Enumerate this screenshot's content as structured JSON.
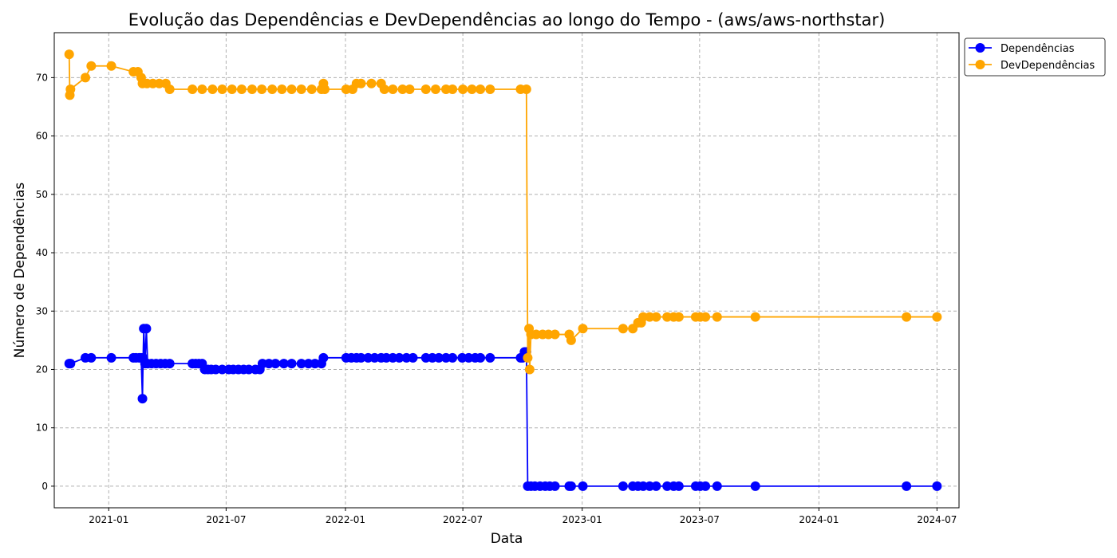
{
  "chart_data": {
    "type": "line",
    "title": "Evolução das Dependências e DevDependências ao longo do Tempo - (aws/aws-northstar)",
    "xlabel": "Data",
    "ylabel": "Número de Dependências",
    "x_ticks": [
      "2021-01",
      "2021-07",
      "2022-01",
      "2022-07",
      "2023-01",
      "2023-07",
      "2024-01",
      "2024-07"
    ],
    "y_ticks": [
      "0",
      "10",
      "20",
      "30",
      "40",
      "50",
      "60",
      "70"
    ],
    "xlim": [
      "2020-10-09",
      "2024-08-04"
    ],
    "ylim": [
      -3.7,
      77.7
    ],
    "grid": true,
    "grid_style": "dashed",
    "legend_position": "outside-top-right",
    "series": [
      {
        "name": "Dependências",
        "color": "#0000ff",
        "marker": "circle",
        "points": [
          [
            "2020-11-01",
            21
          ],
          [
            "2020-11-03",
            21
          ],
          [
            "2020-11-26",
            22
          ],
          [
            "2020-12-05",
            22
          ],
          [
            "2021-01-05",
            22
          ],
          [
            "2021-02-08",
            22
          ],
          [
            "2021-02-12",
            22
          ],
          [
            "2021-02-17",
            22
          ],
          [
            "2021-02-20",
            22
          ],
          [
            "2021-02-22",
            15
          ],
          [
            "2021-02-23",
            22
          ],
          [
            "2021-02-24",
            27
          ],
          [
            "2021-02-26",
            21
          ],
          [
            "2021-02-28",
            27
          ],
          [
            "2021-03-02",
            21
          ],
          [
            "2021-03-08",
            21
          ],
          [
            "2021-03-15",
            21
          ],
          [
            "2021-03-22",
            21
          ],
          [
            "2021-03-29",
            21
          ],
          [
            "2021-04-05",
            21
          ],
          [
            "2021-05-10",
            21
          ],
          [
            "2021-05-15",
            21
          ],
          [
            "2021-05-20",
            21
          ],
          [
            "2021-05-25",
            21
          ],
          [
            "2021-05-29",
            20
          ],
          [
            "2021-06-03",
            20
          ],
          [
            "2021-06-08",
            20
          ],
          [
            "2021-06-15",
            20
          ],
          [
            "2021-06-25",
            20
          ],
          [
            "2021-07-05",
            20
          ],
          [
            "2021-07-12",
            20
          ],
          [
            "2021-07-20",
            20
          ],
          [
            "2021-07-28",
            20
          ],
          [
            "2021-08-05",
            20
          ],
          [
            "2021-08-15",
            20
          ],
          [
            "2021-08-22",
            20
          ],
          [
            "2021-08-26",
            21
          ],
          [
            "2021-09-05",
            21
          ],
          [
            "2021-09-15",
            21
          ],
          [
            "2021-09-28",
            21
          ],
          [
            "2021-10-10",
            21
          ],
          [
            "2021-10-25",
            21
          ],
          [
            "2021-11-05",
            21
          ],
          [
            "2021-11-15",
            21
          ],
          [
            "2021-11-25",
            21
          ],
          [
            "2021-11-28",
            22
          ],
          [
            "2022-01-02",
            22
          ],
          [
            "2022-01-10",
            22
          ],
          [
            "2022-01-18",
            22
          ],
          [
            "2022-01-25",
            22
          ],
          [
            "2022-02-05",
            22
          ],
          [
            "2022-02-15",
            22
          ],
          [
            "2022-02-25",
            22
          ],
          [
            "2022-03-05",
            22
          ],
          [
            "2022-03-15",
            22
          ],
          [
            "2022-03-25",
            22
          ],
          [
            "2022-04-05",
            22
          ],
          [
            "2022-04-15",
            22
          ],
          [
            "2022-05-05",
            22
          ],
          [
            "2022-05-15",
            22
          ],
          [
            "2022-05-25",
            22
          ],
          [
            "2022-06-05",
            22
          ],
          [
            "2022-06-15",
            22
          ],
          [
            "2022-06-30",
            22
          ],
          [
            "2022-07-10",
            22
          ],
          [
            "2022-07-20",
            22
          ],
          [
            "2022-07-28",
            22
          ],
          [
            "2022-08-12",
            22
          ],
          [
            "2022-09-28",
            22
          ],
          [
            "2022-10-01",
            22
          ],
          [
            "2022-10-04",
            23
          ],
          [
            "2022-10-07",
            23
          ],
          [
            "2022-10-09",
            0
          ],
          [
            "2022-10-14",
            0
          ],
          [
            "2022-10-20",
            0
          ],
          [
            "2022-10-28",
            0
          ],
          [
            "2022-11-05",
            0
          ],
          [
            "2022-11-12",
            0
          ],
          [
            "2022-11-20",
            0
          ],
          [
            "2022-12-12",
            0
          ],
          [
            "2022-12-15",
            0
          ],
          [
            "2023-01-02",
            0
          ],
          [
            "2023-03-05",
            0
          ],
          [
            "2023-03-20",
            0
          ],
          [
            "2023-03-28",
            0
          ],
          [
            "2023-04-05",
            0
          ],
          [
            "2023-04-15",
            0
          ],
          [
            "2023-04-25",
            0
          ],
          [
            "2023-05-12",
            0
          ],
          [
            "2023-05-22",
            0
          ],
          [
            "2023-05-30",
            0
          ],
          [
            "2023-06-25",
            0
          ],
          [
            "2023-07-02",
            0
          ],
          [
            "2023-07-10",
            0
          ],
          [
            "2023-07-28",
            0
          ],
          [
            "2023-09-25",
            0
          ],
          [
            "2024-05-15",
            0
          ],
          [
            "2024-07-01",
            0
          ]
        ]
      },
      {
        "name": "DevDependências",
        "color": "#ffa500",
        "marker": "circle",
        "points": [
          [
            "2020-11-01",
            74
          ],
          [
            "2020-11-02",
            67
          ],
          [
            "2020-11-03",
            68
          ],
          [
            "2020-11-26",
            70
          ],
          [
            "2020-12-05",
            72
          ],
          [
            "2021-01-05",
            72
          ],
          [
            "2021-02-08",
            71
          ],
          [
            "2021-02-15",
            71
          ],
          [
            "2021-02-20",
            70
          ],
          [
            "2021-02-22",
            69
          ],
          [
            "2021-03-01",
            69
          ],
          [
            "2021-03-10",
            69
          ],
          [
            "2021-03-20",
            69
          ],
          [
            "2021-03-30",
            69
          ],
          [
            "2021-04-05",
            68
          ],
          [
            "2021-05-10",
            68
          ],
          [
            "2021-05-25",
            68
          ],
          [
            "2021-06-10",
            68
          ],
          [
            "2021-06-25",
            68
          ],
          [
            "2021-07-10",
            68
          ],
          [
            "2021-07-25",
            68
          ],
          [
            "2021-08-10",
            68
          ],
          [
            "2021-08-25",
            68
          ],
          [
            "2021-09-10",
            68
          ],
          [
            "2021-09-25",
            68
          ],
          [
            "2021-10-10",
            68
          ],
          [
            "2021-10-25",
            68
          ],
          [
            "2021-11-10",
            68
          ],
          [
            "2021-11-25",
            68
          ],
          [
            "2021-11-28",
            69
          ],
          [
            "2021-11-30",
            68
          ],
          [
            "2022-01-02",
            68
          ],
          [
            "2022-01-12",
            68
          ],
          [
            "2022-01-18",
            69
          ],
          [
            "2022-01-25",
            69
          ],
          [
            "2022-02-10",
            69
          ],
          [
            "2022-02-25",
            69
          ],
          [
            "2022-03-02",
            68
          ],
          [
            "2022-03-15",
            68
          ],
          [
            "2022-03-30",
            68
          ],
          [
            "2022-04-10",
            68
          ],
          [
            "2022-05-05",
            68
          ],
          [
            "2022-05-20",
            68
          ],
          [
            "2022-06-05",
            68
          ],
          [
            "2022-06-15",
            68
          ],
          [
            "2022-07-01",
            68
          ],
          [
            "2022-07-15",
            68
          ],
          [
            "2022-07-28",
            68
          ],
          [
            "2022-08-12",
            68
          ],
          [
            "2022-09-28",
            68
          ],
          [
            "2022-10-07",
            68
          ],
          [
            "2022-10-09",
            22
          ],
          [
            "2022-10-11",
            27
          ],
          [
            "2022-10-12",
            20
          ],
          [
            "2022-10-14",
            26
          ],
          [
            "2022-10-22",
            26
          ],
          [
            "2022-11-01",
            26
          ],
          [
            "2022-11-10",
            26
          ],
          [
            "2022-11-20",
            26
          ],
          [
            "2022-12-12",
            26
          ],
          [
            "2022-12-15",
            25
          ],
          [
            "2023-01-02",
            27
          ],
          [
            "2023-03-05",
            27
          ],
          [
            "2023-03-20",
            27
          ],
          [
            "2023-03-28",
            28
          ],
          [
            "2023-04-02",
            28
          ],
          [
            "2023-04-05",
            29
          ],
          [
            "2023-04-15",
            29
          ],
          [
            "2023-04-25",
            29
          ],
          [
            "2023-05-12",
            29
          ],
          [
            "2023-05-22",
            29
          ],
          [
            "2023-05-30",
            29
          ],
          [
            "2023-06-25",
            29
          ],
          [
            "2023-07-02",
            29
          ],
          [
            "2023-07-10",
            29
          ],
          [
            "2023-07-28",
            29
          ],
          [
            "2023-09-25",
            29
          ],
          [
            "2024-05-15",
            29
          ],
          [
            "2024-07-01",
            29
          ]
        ]
      }
    ]
  }
}
